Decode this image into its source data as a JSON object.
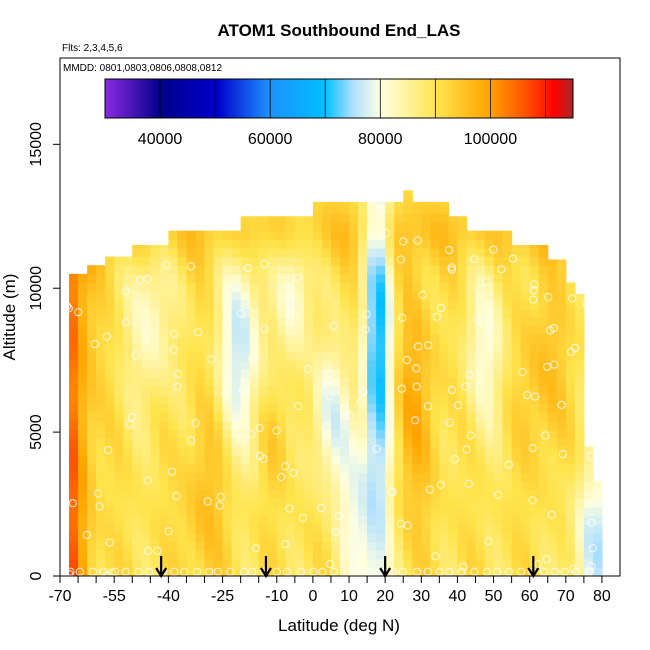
{
  "chart_data": {
    "type": "heatmap",
    "title": "ATOM1 Southbound End_LAS",
    "subtitle_flights": "Flts: 2,3,4,5,6",
    "subtitle_dates": "MMDD: 0801,0803,0806,0808,0812",
    "xlabel": "Latitude (deg N)",
    "ylabel": "Altitude (m)",
    "xlim": [
      -70,
      85
    ],
    "ylim": [
      0,
      18000
    ],
    "x_ticks": [
      -70,
      -55,
      -40,
      -25,
      -10,
      0,
      10,
      20,
      30,
      40,
      50,
      60,
      70,
      80
    ],
    "y_ticks": [
      0,
      5000,
      10000,
      15000
    ],
    "colorbar": {
      "position": "top-inside",
      "range": [
        30000,
        115000
      ],
      "ticks": [
        40000,
        60000,
        80000,
        100000
      ],
      "boundaries": [
        40000,
        50000,
        60000,
        70000,
        80000,
        90000,
        100000,
        110000
      ],
      "colors": [
        "#8a2be2",
        "#00008b",
        "#0000cd",
        "#1e90ff",
        "#00bfff",
        "#b0e0ff",
        "#ffffe0",
        "#ffe44d",
        "#ffa500",
        "#ff4500",
        "#ff0000",
        "#b22222"
      ]
    },
    "arrow_latitudes": [
      -42,
      -13,
      20,
      61
    ],
    "grid": false,
    "legend": "none"
  }
}
